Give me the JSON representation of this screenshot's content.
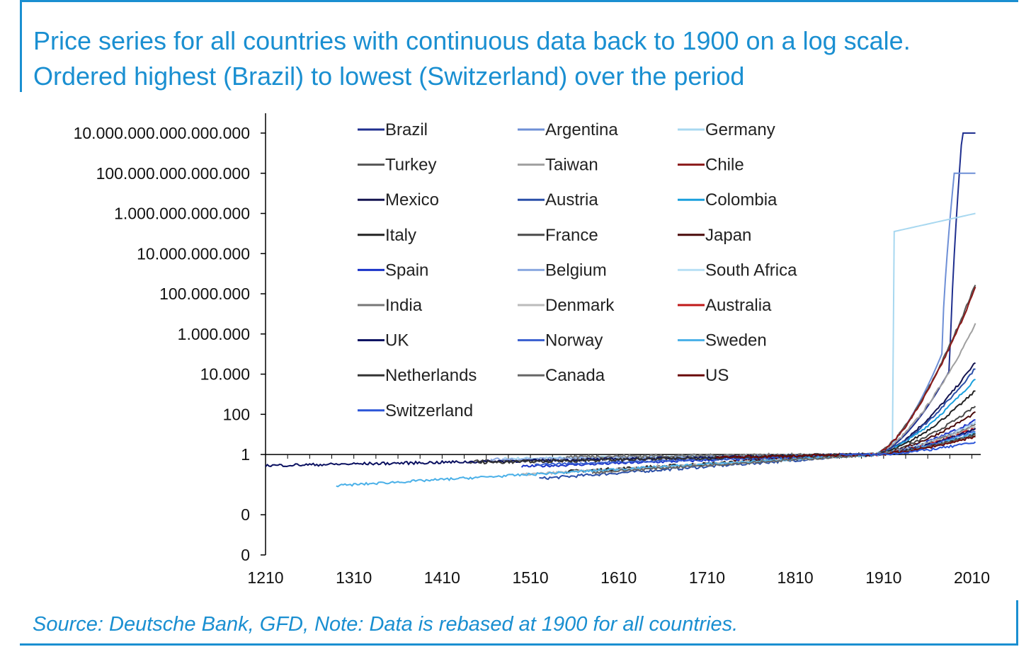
{
  "header": {
    "title": "Price series for all countries with continuous data back to 1900 on a log scale. Ordered highest (Brazil) to lowest (Switzerland) over the period"
  },
  "footer": {
    "source": "Source: Deutsche Bank, GFD, Note: Data is rebased at 1900 for all countries."
  },
  "colors": {
    "accent": "#1a8fd1"
  },
  "chart_data": {
    "type": "line",
    "title": "Price series for all countries with continuous data back to 1900 on a log scale. Ordered highest (Brazil) to lowest (Switzerland) over the period",
    "xlabel": "",
    "ylabel": "",
    "x_scale": "linear",
    "y_scale": "log",
    "xlim": [
      1210,
      2020
    ],
    "ylim": [
      1e-05,
      10000000000000000
    ],
    "x_ticks": [
      1210,
      1310,
      1410,
      1510,
      1610,
      1710,
      1810,
      1910,
      2010
    ],
    "x_tick_labels": [
      "1210",
      "1310",
      "1410",
      "1510",
      "1610",
      "1710",
      "1810",
      "1910",
      "2010"
    ],
    "y_ticks": [
      1e-05,
      0.001,
      1,
      100,
      10000,
      1000000,
      100000000,
      10000000000,
      1000000000000,
      100000000000000,
      10000000000000000
    ],
    "y_tick_labels": [
      "0",
      "0",
      "1",
      "100",
      "10.000",
      "1.000.000",
      "100.000.000",
      "10.000.000.000",
      "1.000.000.000.000",
      "100.000.000.000.000",
      "10.000.000.000.000.000"
    ],
    "grid": false,
    "legend_position": "top-center",
    "series": [
      {
        "name": "Brazil",
        "color": "#1f2f8f",
        "start": 1900,
        "end": 10000000000000000
      },
      {
        "name": "Argentina",
        "color": "#6e8fd6",
        "start": 1900,
        "end": 100000000000000
      },
      {
        "name": "Germany",
        "color": "#a8d8f0",
        "start": 1900,
        "end": 1000000000000
      },
      {
        "name": "Turkey",
        "color": "#555555",
        "start": 1900,
        "end": 300000000
      },
      {
        "name": "Taiwan",
        "color": "#a0a0a0",
        "start": 1900,
        "end": 3000000
      },
      {
        "name": "Chile",
        "color": "#8b1a1a",
        "start": 1900,
        "end": 200000000
      },
      {
        "name": "Mexico",
        "color": "#141450",
        "start": 1900,
        "end": 40000
      },
      {
        "name": "Austria",
        "color": "#2a4fa8",
        "start": 1900,
        "end": 20000
      },
      {
        "name": "Colombia",
        "color": "#1aa0dd",
        "start": 1900,
        "end": 6000
      },
      {
        "name": "Italy",
        "color": "#222222",
        "start": 1900,
        "end": 1500
      },
      {
        "name": "France",
        "color": "#4a4a4a",
        "start": 1900,
        "end": 250
      },
      {
        "name": "Japan",
        "color": "#4a0a0a",
        "start": 1900,
        "end": 120
      },
      {
        "name": "Spain",
        "color": "#1a33c8",
        "start": 1900,
        "end": 50
      },
      {
        "name": "Belgium",
        "color": "#8aa8e0",
        "start": 1900,
        "end": 40
      },
      {
        "name": "South Africa",
        "color": "#b8e0f5",
        "start": 1900,
        "end": 35
      },
      {
        "name": "India",
        "color": "#777777",
        "start": 1900,
        "end": 30
      },
      {
        "name": "Denmark",
        "color": "#bbbbbb",
        "start": 1900,
        "end": 25
      },
      {
        "name": "Australia",
        "color": "#c01818",
        "start": 1900,
        "end": 20
      },
      {
        "name": "UK",
        "color": "#0a1060",
        "start": 1900,
        "end": 18
      },
      {
        "name": "Norway",
        "color": "#3a60d0",
        "start": 1900,
        "end": 15
      },
      {
        "name": "Sweden",
        "color": "#4ab0e8",
        "start": 1900,
        "end": 12
      },
      {
        "name": "Netherlands",
        "color": "#333333",
        "start": 1900,
        "end": 10
      },
      {
        "name": "Canada",
        "color": "#666666",
        "start": 1900,
        "end": 9
      },
      {
        "name": "US",
        "color": "#6a0a0a",
        "start": 1900,
        "end": 8
      },
      {
        "name": "Switzerland",
        "color": "#2b55d8",
        "start": 1900,
        "end": 4
      }
    ]
  }
}
